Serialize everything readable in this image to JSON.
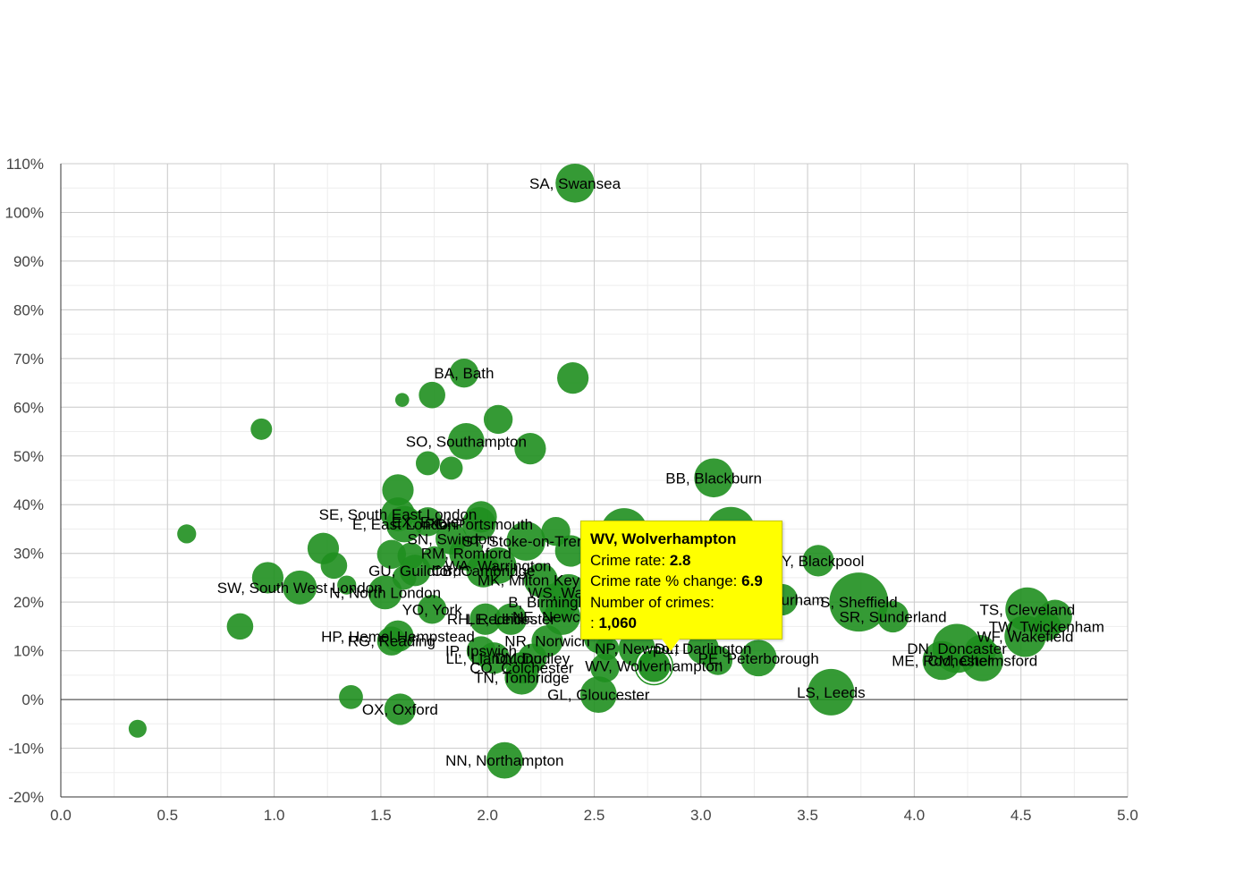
{
  "chart_data": {
    "type": "scatter",
    "title": "",
    "xlabel": "",
    "ylabel": "",
    "xlim": [
      0,
      5
    ],
    "ylim": [
      -20,
      110
    ],
    "x_ticks": [
      "0.0",
      "0.5",
      "1.0",
      "1.5",
      "2.0",
      "2.5",
      "3.0",
      "3.5",
      "4.0",
      "4.5",
      "5.0"
    ],
    "x_tick_values": [
      0,
      0.5,
      1.0,
      1.5,
      2.0,
      2.5,
      3.0,
      3.5,
      4.0,
      4.5,
      5.0
    ],
    "y_ticks": [
      "110%",
      "100%",
      "90%",
      "80%",
      "70%",
      "60%",
      "50%",
      "40%",
      "30%",
      "20%",
      "10%",
      "0%",
      "-10%",
      "-20%"
    ],
    "y_tick_values": [
      110,
      100,
      90,
      80,
      70,
      60,
      50,
      40,
      30,
      20,
      10,
      0,
      -10,
      -20
    ],
    "grid": true,
    "bubble_color": "#1f8f1f",
    "points": [
      {
        "label": "SA, Swansea",
        "x": 2.41,
        "y": 106,
        "size": 0.6
      },
      {
        "label": "BA, Bath",
        "x": 1.89,
        "y": 67,
        "size": 0.4
      },
      {
        "label": "",
        "x": 2.4,
        "y": 66,
        "size": 0.45
      },
      {
        "label": "",
        "x": 1.6,
        "y": 61.5,
        "size": 0.1
      },
      {
        "label": "",
        "x": 1.74,
        "y": 62.5,
        "size": 0.35
      },
      {
        "label": "",
        "x": 2.05,
        "y": 57.5,
        "size": 0.4
      },
      {
        "label": "",
        "x": 0.94,
        "y": 55.5,
        "size": 0.25
      },
      {
        "label": "SO, Southampton",
        "x": 1.9,
        "y": 53,
        "size": 0.55
      },
      {
        "label": "",
        "x": 2.2,
        "y": 51.5,
        "size": 0.45
      },
      {
        "label": "",
        "x": 1.72,
        "y": 48.5,
        "size": 0.3
      },
      {
        "label": "",
        "x": 1.83,
        "y": 47.5,
        "size": 0.28
      },
      {
        "label": "BB, Blackburn",
        "x": 3.06,
        "y": 45.5,
        "size": 0.6
      },
      {
        "label": "",
        "x": 1.58,
        "y": 43,
        "size": 0.45
      },
      {
        "label": "SE, South East London",
        "x": 1.58,
        "y": 38,
        "size": 0.5
      },
      {
        "label": "",
        "x": 1.97,
        "y": 37.5,
        "size": 0.45
      },
      {
        "label": "E, East London",
        "x": 1.61,
        "y": 36,
        "size": 0.55
      },
      {
        "label": "EX, Exeter",
        "x": 1.72,
        "y": 36.5,
        "size": 0.4
      },
      {
        "label": "PO, Portsmouth",
        "x": 1.96,
        "y": 36,
        "size": 0.5
      },
      {
        "label": "",
        "x": 2.32,
        "y": 34.5,
        "size": 0.4
      },
      {
        "label": "",
        "x": 2.64,
        "y": 34.5,
        "size": 0.75
      },
      {
        "label": "",
        "x": 3.14,
        "y": 34.5,
        "size": 0.8
      },
      {
        "label": "",
        "x": 0.59,
        "y": 34,
        "size": 0.2
      },
      {
        "label": "ST, Stoke-on-Trent",
        "x": 2.18,
        "y": 32.5,
        "size": 0.6
      },
      {
        "label": "SN, Swindon",
        "x": 1.83,
        "y": 33,
        "size": 0.45
      },
      {
        "label": "",
        "x": 1.23,
        "y": 31,
        "size": 0.45
      },
      {
        "label": "",
        "x": 2.39,
        "y": 30.5,
        "size": 0.45
      },
      {
        "label": "RM, Romford",
        "x": 1.9,
        "y": 30,
        "size": 0.5
      },
      {
        "label": "",
        "x": 1.55,
        "y": 29.8,
        "size": 0.4
      },
      {
        "label": "",
        "x": 1.64,
        "y": 29.5,
        "size": 0.35
      },
      {
        "label": "",
        "x": 1.75,
        "y": 29,
        "size": 0.3
      },
      {
        "label": "FY, Blackpool",
        "x": 3.55,
        "y": 28.5,
        "size": 0.45
      },
      {
        "label": "WA, Warrington",
        "x": 2.05,
        "y": 27.5,
        "size": 0.55
      },
      {
        "label": "",
        "x": 1.28,
        "y": 27.5,
        "size": 0.35
      },
      {
        "label": "GU, Guildford",
        "x": 1.66,
        "y": 26.5,
        "size": 0.45
      },
      {
        "label": "CB, Cambridge",
        "x": 1.98,
        "y": 26.5,
        "size": 0.5
      },
      {
        "label": "",
        "x": 1.61,
        "y": 25,
        "size": 0.3
      },
      {
        "label": "",
        "x": 0.97,
        "y": 25,
        "size": 0.45
      },
      {
        "label": "MK, Milton Keynes",
        "x": 2.25,
        "y": 24.5,
        "size": 0.5
      },
      {
        "label": "SW, South West London",
        "x": 1.12,
        "y": 23,
        "size": 0.5
      },
      {
        "label": "",
        "x": 1.34,
        "y": 23.5,
        "size": 0.2
      },
      {
        "label": "N, North London",
        "x": 1.52,
        "y": 22,
        "size": 0.5
      },
      {
        "label": "WS, Walsall",
        "x": 2.38,
        "y": 22,
        "size": 0.55
      },
      {
        "label": "DH, Durham",
        "x": 3.38,
        "y": 20.5,
        "size": 0.45
      },
      {
        "label": "B, Birmingham",
        "x": 2.33,
        "y": 20,
        "size": 0.6
      },
      {
        "label": "S, Sheffield",
        "x": 3.74,
        "y": 20,
        "size": 1.0
      },
      {
        "label": "YO, York",
        "x": 1.74,
        "y": 18.5,
        "size": 0.4
      },
      {
        "label": "TS, Cleveland",
        "x": 4.53,
        "y": 18.5,
        "size": 0.7
      },
      {
        "label": "",
        "x": 4.66,
        "y": 17,
        "size": 0.5
      },
      {
        "label": "SR, Sunderland",
        "x": 3.9,
        "y": 17,
        "size": 0.45
      },
      {
        "label": "NE, Newcastle",
        "x": 2.35,
        "y": 17,
        "size": 0.55
      },
      {
        "label": "RH, Redhill",
        "x": 1.99,
        "y": 16.5,
        "size": 0.45
      },
      {
        "label": "LE, Leicester",
        "x": 2.11,
        "y": 16.5,
        "size": 0.45
      },
      {
        "label": "",
        "x": 0.84,
        "y": 15,
        "size": 0.35
      },
      {
        "label": "TW, Twickenham",
        "x": 4.62,
        "y": 15,
        "size": 0.4
      },
      {
        "label": "WF, Wakefield",
        "x": 4.52,
        "y": 13,
        "size": 0.65
      },
      {
        "label": "HP, Hemel Hempstead",
        "x": 1.58,
        "y": 13,
        "size": 0.45
      },
      {
        "label": "RG, Reading",
        "x": 1.55,
        "y": 12,
        "size": 0.4
      },
      {
        "label": "NR, Norwich",
        "x": 2.28,
        "y": 12,
        "size": 0.45
      },
      {
        "label": "",
        "x": 2.52,
        "y": 12.5,
        "size": 0.4
      },
      {
        "label": "NP, Newport",
        "x": 2.7,
        "y": 10.5,
        "size": 0.55
      },
      {
        "label": "",
        "x": 2.56,
        "y": 10.5,
        "size": 0.3
      },
      {
        "label": "IP, Ipswich",
        "x": 1.97,
        "y": 10,
        "size": 0.4
      },
      {
        "label": "DN, Doncaster",
        "x": 4.2,
        "y": 10.5,
        "size": 0.8
      },
      {
        "label": "",
        "x": 4.31,
        "y": 10,
        "size": 0.45
      },
      {
        "label": "DL, Darlington",
        "x": 3.01,
        "y": 10.5,
        "size": 0.45
      },
      {
        "label": "LL, Llandudno",
        "x": 2.03,
        "y": 8.5,
        "size": 0.45
      },
      {
        "label": "DY, Dudley",
        "x": 2.21,
        "y": 8.5,
        "size": 0.4
      },
      {
        "label": "PE, Peterborough",
        "x": 3.27,
        "y": 8.5,
        "size": 0.55
      },
      {
        "label": "",
        "x": 3.08,
        "y": 8,
        "size": 0.4
      },
      {
        "label": "ME, Rochester",
        "x": 4.13,
        "y": 8,
        "size": 0.6
      },
      {
        "label": "CM, Chelmsford",
        "x": 4.32,
        "y": 8,
        "size": 0.65
      },
      {
        "label": "WV, Wolverhampton",
        "x": 2.78,
        "y": 6.9,
        "size": 0.5,
        "highlighted": true
      },
      {
        "label": "CO, Colchester",
        "x": 2.16,
        "y": 6.5,
        "size": 0.45
      },
      {
        "label": "",
        "x": 2.55,
        "y": 6.5,
        "size": 0.4
      },
      {
        "label": "TN, Tonbridge",
        "x": 2.16,
        "y": 4.5,
        "size": 0.5
      },
      {
        "label": "LS, Leeds",
        "x": 3.61,
        "y": 1.5,
        "size": 0.75
      },
      {
        "label": "GL, Gloucester",
        "x": 2.52,
        "y": 1,
        "size": 0.55
      },
      {
        "label": "",
        "x": 1.36,
        "y": 0.5,
        "size": 0.3
      },
      {
        "label": "OX, Oxford",
        "x": 1.59,
        "y": -2,
        "size": 0.45
      },
      {
        "label": "",
        "x": 0.36,
        "y": -6,
        "size": 0.18
      },
      {
        "label": "NN, Northampton",
        "x": 2.08,
        "y": -12.5,
        "size": 0.55
      }
    ],
    "tooltip": {
      "title": "WV, Wolverhampton",
      "rate_label": "Crime rate:",
      "rate_value": "2.8",
      "change_label": "Crime rate % change:",
      "change_value": "6.9",
      "crimes_label": "Number of crimes:",
      "crimes_prefix": ":",
      "crimes_value": "1,060"
    }
  }
}
